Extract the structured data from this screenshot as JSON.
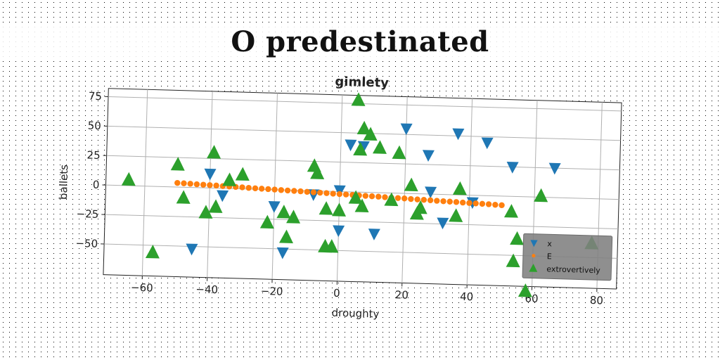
{
  "page_title": "O predestinated",
  "chart_data": {
    "type": "scatter",
    "title": "gimlety",
    "xlabel": "droughty",
    "ylabel": "ballets",
    "xlim": [
      -72,
      86
    ],
    "ylim": [
      -76,
      82
    ],
    "xticks": [
      -60,
      -40,
      -20,
      0,
      20,
      40,
      60,
      80
    ],
    "yticks": [
      -50,
      -25,
      0,
      25,
      50,
      75
    ],
    "grid": true,
    "legend_position": "bottom-right",
    "series": [
      {
        "name": "x",
        "color": "#1f77b4",
        "marker": "triangle-down",
        "points": [
          [
            -45,
            -52
          ],
          [
            -40,
            12
          ],
          [
            -36,
            -6
          ],
          [
            -20,
            -14
          ],
          [
            -17,
            -53
          ],
          [
            -8,
            -3
          ],
          [
            0,
            1
          ],
          [
            0,
            -33
          ],
          [
            3,
            40
          ],
          [
            7,
            39
          ],
          [
            11,
            -35
          ],
          [
            20,
            55
          ],
          [
            27,
            33
          ],
          [
            28,
            2
          ],
          [
            32,
            -24
          ],
          [
            36,
            52
          ],
          [
            41,
            -6
          ],
          [
            45,
            45
          ],
          [
            53,
            25
          ],
          [
            66,
            25
          ]
        ]
      },
      {
        "name": "E",
        "color": "#ff7f0e",
        "marker": "circle",
        "points": [
          [
            -50,
            3.5
          ],
          [
            -48,
            3.3
          ],
          [
            -46,
            3.1
          ],
          [
            -44,
            2.8
          ],
          [
            -42,
            2.6
          ],
          [
            -40,
            2.4
          ],
          [
            -38,
            2.2
          ],
          [
            -36,
            1.9
          ],
          [
            -34,
            1.7
          ],
          [
            -32,
            1.5
          ],
          [
            -30,
            1.3
          ],
          [
            -28,
            1.0
          ],
          [
            -26,
            0.8
          ],
          [
            -24,
            0.6
          ],
          [
            -22,
            0.4
          ],
          [
            -20,
            0.2
          ],
          [
            -18,
            -0.1
          ],
          [
            -16,
            -0.3
          ],
          [
            -14,
            -0.5
          ],
          [
            -12,
            -0.7
          ],
          [
            -10,
            -1.0
          ],
          [
            -8,
            -1.2
          ],
          [
            -6,
            -1.4
          ],
          [
            -4,
            -1.6
          ],
          [
            -2,
            -1.9
          ],
          [
            0,
            -2.1
          ],
          [
            2,
            -2.3
          ],
          [
            4,
            -2.5
          ],
          [
            6,
            -2.8
          ],
          [
            8,
            -3.0
          ],
          [
            10,
            -3.2
          ],
          [
            12,
            -3.4
          ],
          [
            14,
            -3.7
          ],
          [
            16,
            -3.9
          ],
          [
            18,
            -4.1
          ],
          [
            20,
            -4.3
          ],
          [
            22,
            -4.6
          ],
          [
            24,
            -4.8
          ],
          [
            26,
            -5.0
          ],
          [
            28,
            -5.2
          ],
          [
            30,
            -5.5
          ],
          [
            32,
            -5.7
          ],
          [
            34,
            -5.9
          ],
          [
            36,
            -6.1
          ],
          [
            38,
            -6.4
          ],
          [
            40,
            -6.6
          ],
          [
            42,
            -6.8
          ],
          [
            44,
            -7.0
          ],
          [
            46,
            -7.2
          ],
          [
            48,
            -7.5
          ],
          [
            50,
            -7.7
          ]
        ]
      },
      {
        "name": "extrovertively",
        "color": "#2ca02c",
        "marker": "triangle-up",
        "points": [
          [
            -65,
            5
          ],
          [
            -57,
            -56
          ],
          [
            -50,
            19
          ],
          [
            -48,
            -9
          ],
          [
            -41,
            -21
          ],
          [
            -39,
            30
          ],
          [
            -38,
            -16
          ],
          [
            -34,
            7
          ],
          [
            -30,
            12
          ],
          [
            -22,
            -28
          ],
          [
            -17,
            -19
          ],
          [
            -16,
            -40
          ],
          [
            -14,
            -23
          ],
          [
            -8,
            21
          ],
          [
            -7,
            15
          ],
          [
            -4,
            -15
          ],
          [
            -4,
            -47
          ],
          [
            -2,
            -47
          ],
          [
            0,
            -16
          ],
          [
            5,
            -5
          ],
          [
            6,
            36
          ],
          [
            7,
            54
          ],
          [
            7,
            -12
          ],
          [
            9,
            49
          ],
          [
            12,
            38
          ],
          [
            18,
            34
          ],
          [
            16,
            -6
          ],
          [
            22,
            7
          ],
          [
            24,
            -17
          ],
          [
            25,
            -12
          ],
          [
            36,
            -18
          ],
          [
            37,
            5
          ],
          [
            53,
            -13
          ],
          [
            54,
            -55
          ],
          [
            55,
            -36
          ],
          [
            58,
            -80
          ],
          [
            62,
            1
          ],
          [
            78,
            -38
          ],
          [
            5,
            78
          ]
        ]
      }
    ]
  }
}
